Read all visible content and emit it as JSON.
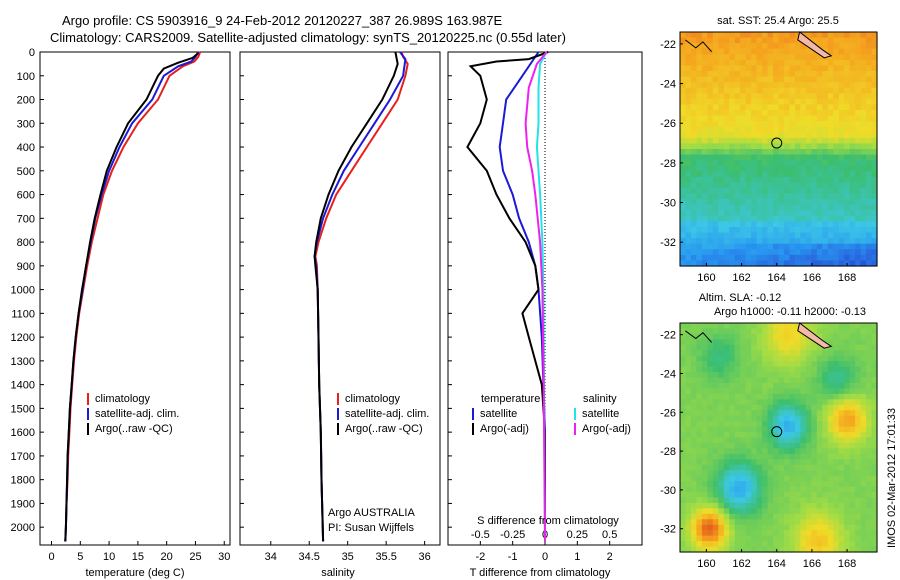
{
  "titles": {
    "line1": "Argo profile: CS 5903916_9 24-Feb-2012 20120227_387 26.989S 163.987E",
    "line2": "Climatology: CARS2009. Satellite-adjusted climatology: synTS_20120225.nc (0.55d later)"
  },
  "colors": {
    "red": "#e8201c",
    "blue": "#1a1ad8",
    "black": "#000000",
    "cyan": "#22e4e8",
    "magenta": "#ee22ee"
  },
  "chart_data": [
    {
      "type": "line",
      "xlabel": "temperature (deg C)",
      "xlim": [
        -2,
        31
      ],
      "xticks": [
        0,
        5,
        10,
        15,
        20,
        25,
        30
      ],
      "ylim": [
        2075,
        0
      ],
      "yticks": [
        0,
        100,
        200,
        300,
        400,
        500,
        600,
        700,
        800,
        900,
        1000,
        1100,
        1200,
        1300,
        1400,
        1500,
        1600,
        1700,
        1800,
        1900,
        2000
      ],
      "legend": [
        "climatology",
        "satellite-adj. clim.",
        "Argo(..raw -QC)"
      ],
      "series": [
        {
          "name": "climatology",
          "color": "red",
          "points": [
            [
              25.8,
              0
            ],
            [
              25.5,
              20
            ],
            [
              24.8,
              40
            ],
            [
              22.8,
              60
            ],
            [
              20.5,
              100
            ],
            [
              18.5,
              200
            ],
            [
              15,
              300
            ],
            [
              12.5,
              400
            ],
            [
              10.5,
              500
            ],
            [
              9,
              600
            ],
            [
              8,
              700
            ],
            [
              7,
              800
            ],
            [
              6.2,
              900
            ],
            [
              5.5,
              1000
            ],
            [
              4.8,
              1100
            ],
            [
              4.3,
              1200
            ],
            [
              3.9,
              1300
            ],
            [
              3.6,
              1400
            ],
            [
              3.3,
              1500
            ],
            [
              3.1,
              1600
            ],
            [
              2.9,
              1700
            ],
            [
              2.8,
              1800
            ],
            [
              2.6,
              1900
            ],
            [
              2.5,
              2000
            ],
            [
              2.4,
              2060
            ]
          ]
        },
        {
          "name": "satellite-adj. clim.",
          "color": "blue",
          "points": [
            [
              25.5,
              0
            ],
            [
              25,
              20
            ],
            [
              24.3,
              40
            ],
            [
              22,
              60
            ],
            [
              19.5,
              100
            ],
            [
              17.5,
              200
            ],
            [
              14,
              300
            ],
            [
              11.8,
              400
            ],
            [
              10,
              500
            ],
            [
              8.7,
              600
            ],
            [
              7.6,
              700
            ],
            [
              6.8,
              800
            ],
            [
              6,
              900
            ],
            [
              5.4,
              1000
            ],
            [
              4.7,
              1100
            ],
            [
              4.2,
              1200
            ],
            [
              3.8,
              1300
            ],
            [
              3.5,
              1400
            ],
            [
              3.2,
              1500
            ],
            [
              3,
              1600
            ],
            [
              2.8,
              1700
            ],
            [
              2.7,
              1800
            ],
            [
              2.6,
              1900
            ],
            [
              2.5,
              2000
            ],
            [
              2.4,
              2060
            ]
          ]
        },
        {
          "name": "Argo(..raw -QC)",
          "color": "black",
          "points": [
            [
              25.5,
              5
            ],
            [
              24.5,
              25
            ],
            [
              22,
              45
            ],
            [
              19.5,
              70
            ],
            [
              18.5,
              100
            ],
            [
              16.5,
              200
            ],
            [
              13.3,
              300
            ],
            [
              11.3,
              400
            ],
            [
              9.6,
              500
            ],
            [
              8.5,
              600
            ],
            [
              7.5,
              700
            ],
            [
              6.7,
              800
            ],
            [
              6,
              900
            ],
            [
              5.3,
              1000
            ],
            [
              4.7,
              1100
            ],
            [
              4.2,
              1200
            ],
            [
              3.8,
              1300
            ],
            [
              3.5,
              1400
            ],
            [
              3.2,
              1500
            ],
            [
              3,
              1600
            ],
            [
              2.8,
              1700
            ],
            [
              2.7,
              1800
            ],
            [
              2.6,
              1900
            ],
            [
              2.5,
              2000
            ],
            [
              2.4,
              2060
            ]
          ]
        }
      ]
    },
    {
      "type": "line",
      "xlabel": "salinity",
      "xlim": [
        33.6,
        36.2
      ],
      "xticks": [
        34,
        34.5,
        35,
        35.5,
        36
      ],
      "ylim": [
        2075,
        0
      ],
      "legend": [
        "climatology",
        "satellite-adj. clim.",
        "Argo(..raw -QC)"
      ],
      "series": [
        {
          "name": "climatology",
          "color": "red",
          "points": [
            [
              35.7,
              0
            ],
            [
              35.72,
              20
            ],
            [
              35.78,
              50
            ],
            [
              35.75,
              100
            ],
            [
              35.65,
              200
            ],
            [
              35.45,
              300
            ],
            [
              35.25,
              400
            ],
            [
              35.05,
              500
            ],
            [
              34.85,
              600
            ],
            [
              34.72,
              700
            ],
            [
              34.62,
              800
            ],
            [
              34.58,
              860
            ],
            [
              34.6,
              900
            ],
            [
              34.61,
              1000
            ],
            [
              34.62,
              1200
            ],
            [
              34.63,
              1400
            ],
            [
              34.65,
              1600
            ],
            [
              34.66,
              1800
            ],
            [
              34.68,
              2060
            ]
          ]
        },
        {
          "name": "satellite-adj. clim.",
          "color": "blue",
          "points": [
            [
              35.68,
              0
            ],
            [
              35.75,
              30
            ],
            [
              35.72,
              100
            ],
            [
              35.55,
              200
            ],
            [
              35.35,
              300
            ],
            [
              35.15,
              400
            ],
            [
              34.95,
              500
            ],
            [
              34.8,
              600
            ],
            [
              34.68,
              700
            ],
            [
              34.6,
              800
            ],
            [
              34.57,
              860
            ],
            [
              34.59,
              900
            ],
            [
              34.61,
              1000
            ],
            [
              34.62,
              1200
            ],
            [
              34.63,
              1400
            ],
            [
              34.65,
              1600
            ],
            [
              34.66,
              1800
            ],
            [
              34.68,
              2060
            ]
          ]
        },
        {
          "name": "Argo(..raw -QC)",
          "color": "black",
          "points": [
            [
              35.62,
              0
            ],
            [
              35.65,
              50
            ],
            [
              35.6,
              100
            ],
            [
              35.45,
              200
            ],
            [
              35.25,
              300
            ],
            [
              35.05,
              400
            ],
            [
              34.88,
              500
            ],
            [
              34.75,
              600
            ],
            [
              34.65,
              700
            ],
            [
              34.59,
              800
            ],
            [
              34.57,
              860
            ],
            [
              34.58,
              900
            ],
            [
              34.61,
              1000
            ],
            [
              34.62,
              1200
            ],
            [
              34.63,
              1400
            ],
            [
              34.65,
              1600
            ],
            [
              34.66,
              1800
            ],
            [
              34.68,
              2060
            ]
          ]
        }
      ],
      "annotations": [
        "Argo AUSTRALIA",
        "PI: Susan Wijffels"
      ]
    },
    {
      "type": "line",
      "xlabel": "T difference from climatology",
      "xlabel_top": "S difference from climatology",
      "xlim": [
        -3,
        3
      ],
      "xticks": [
        -2,
        -1,
        0,
        1,
        2
      ],
      "sticks": [
        -0.5,
        -0.25,
        0,
        0.25,
        0.5
      ],
      "ylim": [
        2075,
        0
      ],
      "legend_titles": [
        "temperature",
        "salinity"
      ],
      "legend": [
        "satellite",
        "Argo(-adj)",
        "satellite",
        "Argo(-adj)"
      ],
      "series": [
        {
          "name": "satellite",
          "color": "blue",
          "points": [
            [
              -0.2,
              0
            ],
            [
              -0.4,
              40
            ],
            [
              -0.7,
              100
            ],
            [
              -1.2,
              200
            ],
            [
              -1.3,
              300
            ],
            [
              -1.4,
              400
            ],
            [
              -1.3,
              500
            ],
            [
              -1,
              600
            ],
            [
              -0.8,
              700
            ],
            [
              -0.5,
              800
            ],
            [
              -0.3,
              900
            ],
            [
              -0.2,
              1000
            ],
            [
              -0.1,
              1200
            ],
            [
              -0.05,
              1400
            ],
            [
              0,
              1600
            ],
            [
              0,
              2060
            ]
          ]
        },
        {
          "name": "Argo(-adj)",
          "color": "black",
          "points": [
            [
              0.1,
              0
            ],
            [
              -0.5,
              30
            ],
            [
              -1.5,
              40
            ],
            [
              -2.3,
              60
            ],
            [
              -2,
              100
            ],
            [
              -1.8,
              200
            ],
            [
              -2,
              300
            ],
            [
              -2.4,
              400
            ],
            [
              -1.8,
              500
            ],
            [
              -1.5,
              600
            ],
            [
              -1.1,
              700
            ],
            [
              -0.6,
              800
            ],
            [
              -0.3,
              900
            ],
            [
              -0.2,
              1000
            ],
            [
              -0.7,
              1100
            ],
            [
              -0.5,
              1200
            ],
            [
              -0.3,
              1300
            ],
            [
              -0.1,
              1400
            ],
            [
              0,
              1600
            ],
            [
              0,
              2060
            ]
          ]
        },
        {
          "name": "satellite",
          "color": "cyan",
          "points": [
            [
              0.05,
              0
            ],
            [
              -0.15,
              50
            ],
            [
              -0.2,
              150
            ],
            [
              -0.2,
              300
            ],
            [
              -0.25,
              400
            ],
            [
              -0.2,
              500
            ],
            [
              -0.15,
              600
            ],
            [
              -0.08,
              800
            ],
            [
              -0.05,
              1000
            ],
            [
              -0.03,
              1400
            ],
            [
              0,
              2060
            ]
          ]
        },
        {
          "name": "Argo(-adj)",
          "color": "magenta",
          "points": [
            [
              0.05,
              0
            ],
            [
              -0.25,
              50
            ],
            [
              -0.5,
              150
            ],
            [
              -0.6,
              300
            ],
            [
              -0.55,
              400
            ],
            [
              -0.4,
              500
            ],
            [
              -0.3,
              600
            ],
            [
              -0.15,
              800
            ],
            [
              -0.08,
              1000
            ],
            [
              -0.04,
              1400
            ],
            [
              0,
              2060
            ]
          ]
        }
      ]
    },
    {
      "type": "heatmap",
      "title": "sat. SST: 25.4 Argo: 25.5",
      "xlim": [
        158.5,
        169.7
      ],
      "ylim": [
        -33.2,
        -21.4
      ],
      "xticks": [
        160,
        162,
        164,
        166,
        168
      ],
      "yticks": [
        -22,
        -24,
        -26,
        -28,
        -30,
        -32
      ],
      "marker": [
        164,
        -27
      ]
    },
    {
      "type": "heatmap",
      "title": "Altim. SLA: -0.12",
      "subtitle": "Argo h1000: -0.11 h2000: -0.13",
      "xlim": [
        158.5,
        169.7
      ],
      "ylim": [
        -33.2,
        -21.4
      ],
      "xticks": [
        160,
        162,
        164,
        166,
        168
      ],
      "yticks": [
        -22,
        -24,
        -26,
        -28,
        -30,
        -32
      ],
      "marker": [
        164,
        -27
      ]
    }
  ],
  "footer": "IMOS 02-Mar-2012 17:01:33"
}
